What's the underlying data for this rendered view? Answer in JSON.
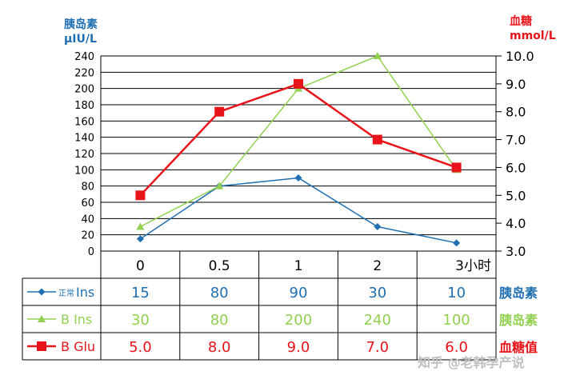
{
  "chart_data": {
    "type": "line",
    "x": [
      "0",
      "0.5",
      "1",
      "2",
      "3小时"
    ],
    "left_axis": {
      "label_line1": "胰岛素",
      "label_line2": "μIU/L",
      "ylim": [
        0,
        240
      ],
      "ticks": [
        0,
        20,
        40,
        60,
        80,
        100,
        120,
        140,
        160,
        180,
        200,
        220,
        240
      ]
    },
    "right_axis": {
      "label_line1": "血糖",
      "label_line2": "mmol/L",
      "ylim": [
        3.0,
        10.0
      ],
      "ticks": [
        "3.0",
        "4.0",
        "5.0",
        "6.0",
        "7.0",
        "8.0",
        "9.0",
        "10.0"
      ]
    },
    "series": [
      {
        "name": "正常Ins",
        "name_main": "Ins",
        "name_prefix": "正常",
        "axis": "left",
        "color": "#1f6fb2",
        "marker": "diamond",
        "values": [
          15,
          80,
          90,
          30,
          10
        ],
        "labels": [
          "15",
          "80",
          "90",
          "30",
          "10"
        ],
        "row_label": "胰岛素"
      },
      {
        "name": "B Ins",
        "axis": "left",
        "color": "#92d050",
        "marker": "triangle",
        "values": [
          30,
          80,
          200,
          240,
          100
        ],
        "labels": [
          "30",
          "80",
          "200",
          "240",
          "100"
        ],
        "row_label": "胰岛素"
      },
      {
        "name": "B Glu",
        "axis": "right",
        "color": "#e8141a",
        "marker": "square",
        "values": [
          5.0,
          8.0,
          9.0,
          7.0,
          6.0
        ],
        "labels": [
          "5.0",
          "8.0",
          "9.0",
          "7.0",
          "6.0"
        ],
        "row_label": "血糖值"
      }
    ],
    "grid": true
  },
  "watermark": "知乎 @老韩孕产说"
}
